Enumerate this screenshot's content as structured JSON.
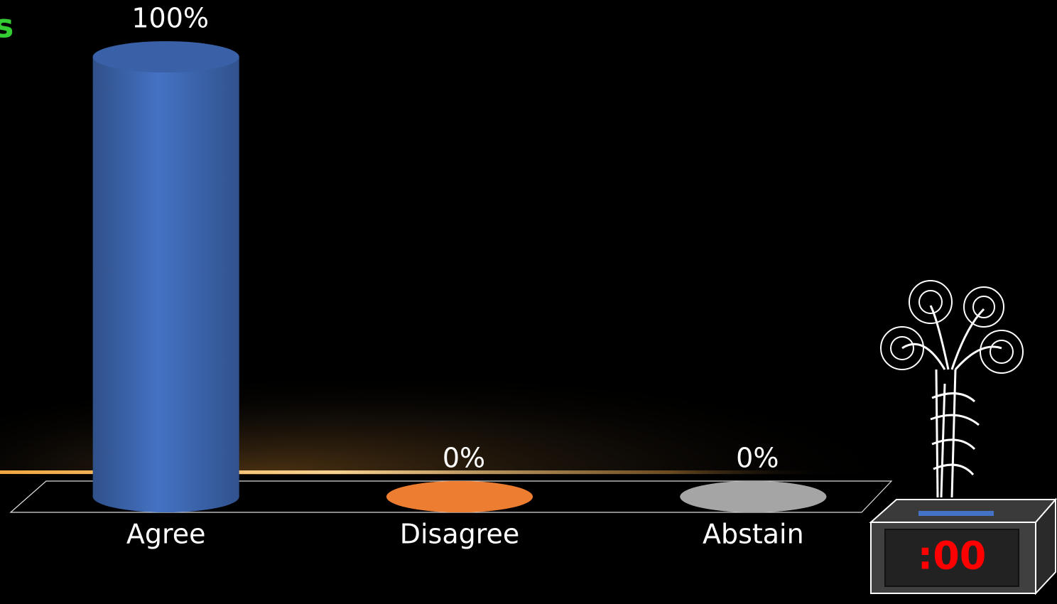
{
  "chart_data": {
    "type": "cylinder",
    "categories": [
      "Agree",
      "Disagree",
      "Abstain"
    ],
    "values": [
      100,
      0,
      0
    ],
    "value_labels": [
      "100%",
      "0%",
      "0%"
    ],
    "colors": [
      "#4472c4",
      "#ed7d31",
      "#a5a5a5"
    ]
  },
  "fragment": "s",
  "timer": ":00"
}
